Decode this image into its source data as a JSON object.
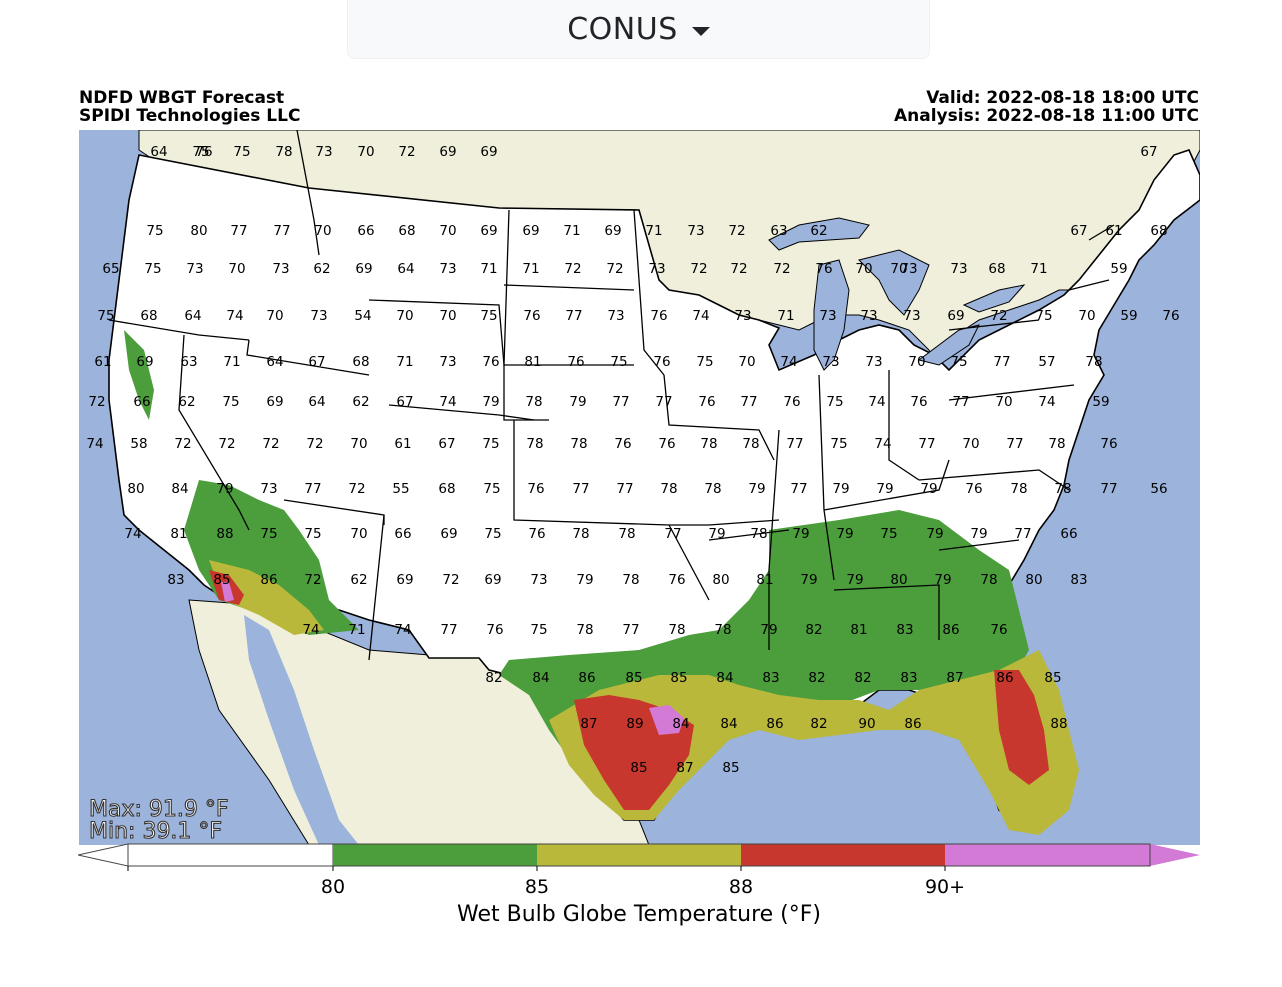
{
  "selector": {
    "label": "CONUS"
  },
  "header": {
    "title": "NDFD WBGT Forecast",
    "org": "SPIDI Technologies LLC",
    "valid": "Valid: 2022-08-18 18:00 UTC",
    "analysis": "Analysis: 2022-08-18 11:00 UTC"
  },
  "stats": {
    "max": "Max: 91.9 °F",
    "min": "Min: 39.1 °F"
  },
  "colors": {
    "ocean": "#9cb3dc",
    "land_foreign": "#efefdc",
    "cat_white": "#ffffff",
    "cat_green": "#4b9e3b",
    "cat_olive": "#b9b83b",
    "cat_red": "#c8372d",
    "cat_magenta": "#d27ad6"
  },
  "colorbar": {
    "label": "Wet Bulb Globe Temperature (°F)",
    "ticks": [
      "80",
      "85",
      "88",
      "90+"
    ]
  },
  "station_values": [
    "76",
    "64",
    "75",
    "75",
    "78",
    "73",
    "70",
    "72",
    "69",
    "69",
    "67",
    "75",
    "80",
    "77",
    "77",
    "70",
    "66",
    "68",
    "70",
    "69",
    "69",
    "71",
    "69",
    "71",
    "73",
    "72",
    "63",
    "62",
    "67",
    "61",
    "68",
    "65",
    "75",
    "73",
    "70",
    "73",
    "62",
    "69",
    "64",
    "73",
    "71",
    "71",
    "72",
    "72",
    "73",
    "72",
    "72",
    "72",
    "76",
    "70",
    "70",
    "73",
    "73",
    "68",
    "71",
    "59",
    "75",
    "68",
    "64",
    "74",
    "70",
    "73",
    "54",
    "70",
    "70",
    "75",
    "76",
    "77",
    "73",
    "76",
    "74",
    "73",
    "71",
    "73",
    "73",
    "73",
    "69",
    "72",
    "75",
    "70",
    "59",
    "76",
    "61",
    "69",
    "63",
    "71",
    "64",
    "67",
    "68",
    "71",
    "73",
    "76",
    "81",
    "76",
    "75",
    "76",
    "75",
    "70",
    "74",
    "73",
    "73",
    "70",
    "75",
    "77",
    "57",
    "78",
    "72",
    "66",
    "62",
    "75",
    "69",
    "64",
    "62",
    "67",
    "74",
    "79",
    "78",
    "79",
    "77",
    "77",
    "76",
    "77",
    "76",
    "75",
    "74",
    "76",
    "77",
    "70",
    "74",
    "59",
    "74",
    "58",
    "72",
    "72",
    "72",
    "72",
    "70",
    "61",
    "67",
    "75",
    "78",
    "78",
    "76",
    "76",
    "78",
    "78",
    "77",
    "75",
    "74",
    "77",
    "70",
    "77",
    "78",
    "76",
    "80",
    "84",
    "79",
    "73",
    "77",
    "72",
    "55",
    "68",
    "75",
    "76",
    "77",
    "77",
    "78",
    "78",
    "79",
    "77",
    "79",
    "79",
    "79",
    "76",
    "78",
    "78",
    "77",
    "56",
    "74",
    "81",
    "88",
    "75",
    "75",
    "70",
    "66",
    "69",
    "75",
    "76",
    "78",
    "78",
    "77",
    "79",
    "78",
    "79",
    "79",
    "75",
    "79",
    "79",
    "77",
    "66",
    "83",
    "85",
    "86",
    "72",
    "62",
    "69",
    "72",
    "69",
    "73",
    "79",
    "78",
    "76",
    "80",
    "81",
    "79",
    "79",
    "80",
    "79",
    "78",
    "80",
    "83",
    "74",
    "71",
    "74",
    "77",
    "76",
    "75",
    "78",
    "77",
    "78",
    "78",
    "79",
    "82",
    "81",
    "83",
    "86",
    "76",
    "82",
    "84",
    "86",
    "85",
    "85",
    "84",
    "83",
    "82",
    "82",
    "83",
    "87",
    "86",
    "85",
    "87",
    "89",
    "84",
    "84",
    "86",
    "82",
    "90",
    "86",
    "88",
    "85",
    "87",
    "85"
  ]
}
